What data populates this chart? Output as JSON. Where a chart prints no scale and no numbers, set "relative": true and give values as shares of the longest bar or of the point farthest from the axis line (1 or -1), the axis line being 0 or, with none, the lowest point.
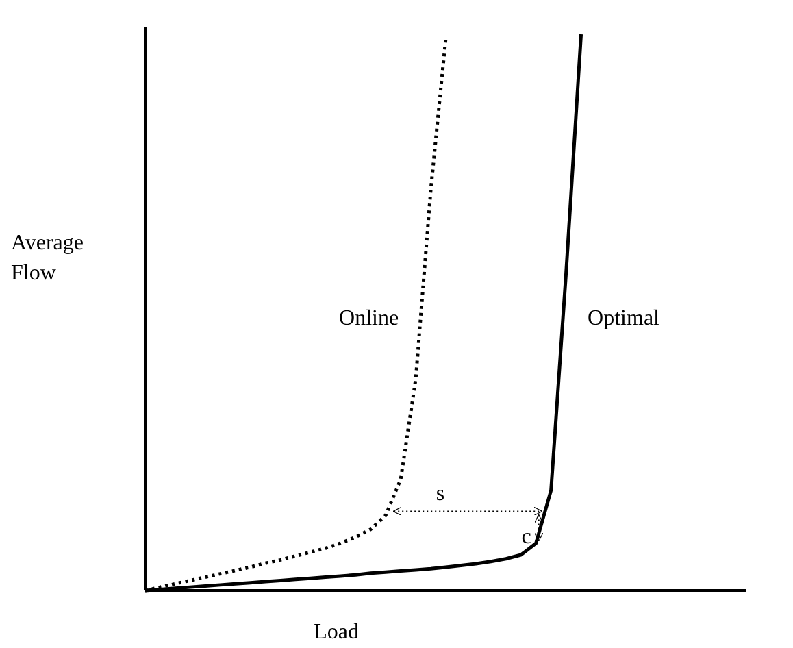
{
  "chart_data": {
    "type": "line",
    "relative": true,
    "xlabel": "Load",
    "ylabel": "Average Flow",
    "tick_labels": false,
    "categories": [
      null,
      null,
      null,
      null,
      null,
      null,
      null,
      null,
      null,
      null,
      null,
      null,
      null,
      null,
      null,
      null,
      null,
      null,
      null,
      null,
      null,
      null,
      null,
      null,
      null,
      null,
      null,
      null,
      null,
      null,
      null,
      null,
      null,
      null,
      null,
      null,
      null,
      null,
      null,
      null,
      null
    ],
    "series": [
      {
        "name": "Online",
        "color": "#000000",
        "line_style": "dotted",
        "values": [
          0,
          0.006,
          0.012,
          0.018,
          0.024,
          0.03,
          0.036,
          0.042,
          0.049,
          0.055,
          0.062,
          0.069,
          0.076,
          0.085,
          0.096,
          0.11,
          0.135,
          0.2,
          0.38,
          0.72,
          0.993,
          null,
          null,
          null,
          null,
          null,
          null,
          null,
          null,
          null,
          null,
          null,
          null,
          null,
          null,
          null,
          null,
          null,
          null,
          null,
          null
        ]
      },
      {
        "name": "Optimal",
        "color": "#000000",
        "line_style": "solid",
        "values": [
          0,
          0.002,
          0.004,
          0.006,
          0.008,
          0.01,
          0.012,
          0.014,
          0.016,
          0.018,
          0.02,
          0.022,
          0.024,
          0.026,
          0.028,
          0.031,
          0.033,
          0.035,
          0.037,
          0.039,
          0.042,
          0.045,
          0.048,
          0.052,
          0.057,
          0.064,
          0.085,
          0.18,
          0.57,
          1.0,
          null,
          null,
          null,
          null,
          null,
          null,
          null,
          null,
          null,
          null,
          null
        ]
      }
    ],
    "annotations": [
      "s",
      "c"
    ]
  }
}
